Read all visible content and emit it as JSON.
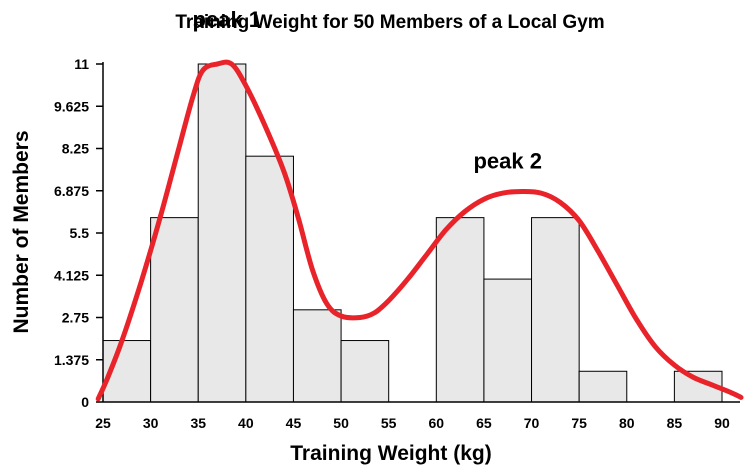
{
  "chart_data": {
    "type": "bar",
    "title": "Training Weight for 50 Members of a Local Gym",
    "xlabel": "Training Weight (kg)",
    "ylabel": "Number of Members",
    "xlim": [
      25,
      90
    ],
    "ylim": [
      0,
      11
    ],
    "x_ticks": [
      "25",
      "30",
      "35",
      "40",
      "45",
      "50",
      "55",
      "60",
      "65",
      "70",
      "75",
      "80",
      "85",
      "90"
    ],
    "y_ticks": [
      "0",
      "1.375",
      "2.75",
      "4.125",
      "5.5",
      "6.875",
      "8.25",
      "9.625",
      "11"
    ],
    "bins": [
      {
        "start": 25,
        "end": 30,
        "value": 2
      },
      {
        "start": 30,
        "end": 35,
        "value": 6
      },
      {
        "start": 35,
        "end": 40,
        "value": 11
      },
      {
        "start": 40,
        "end": 45,
        "value": 8
      },
      {
        "start": 45,
        "end": 50,
        "value": 3
      },
      {
        "start": 50,
        "end": 55,
        "value": 2
      },
      {
        "start": 55,
        "end": 60,
        "value": 0
      },
      {
        "start": 60,
        "end": 65,
        "value": 6
      },
      {
        "start": 65,
        "end": 70,
        "value": 4
      },
      {
        "start": 70,
        "end": 75,
        "value": 6
      },
      {
        "start": 75,
        "end": 80,
        "value": 1
      },
      {
        "start": 80,
        "end": 85,
        "value": 0
      },
      {
        "start": 85,
        "end": 90,
        "value": 1
      }
    ],
    "curve": {
      "color": "#e8232a",
      "points": [
        [
          24.5,
          0.1
        ],
        [
          25.5,
          0.8
        ],
        [
          27,
          2.0
        ],
        [
          29,
          3.9
        ],
        [
          31,
          6.0
        ],
        [
          33,
          8.3
        ],
        [
          34.5,
          10.0
        ],
        [
          35.5,
          10.8
        ],
        [
          37,
          11.0
        ],
        [
          38.5,
          11.0
        ],
        [
          40,
          10.3
        ],
        [
          42,
          9.0
        ],
        [
          44,
          7.5
        ],
        [
          45.5,
          6.0
        ],
        [
          47,
          4.3
        ],
        [
          48.5,
          3.2
        ],
        [
          50,
          2.8
        ],
        [
          52,
          2.75
        ],
        [
          53.5,
          2.9
        ],
        [
          55,
          3.3
        ],
        [
          57,
          4.0
        ],
        [
          59,
          4.8
        ],
        [
          61,
          5.6
        ],
        [
          63,
          6.2
        ],
        [
          65,
          6.6
        ],
        [
          67,
          6.8
        ],
        [
          69,
          6.85
        ],
        [
          71,
          6.8
        ],
        [
          73,
          6.5
        ],
        [
          75,
          5.9
        ],
        [
          77,
          4.9
        ],
        [
          79,
          3.8
        ],
        [
          81,
          2.7
        ],
        [
          83,
          1.8
        ],
        [
          85,
          1.2
        ],
        [
          87,
          0.8
        ],
        [
          89,
          0.55
        ],
        [
          91,
          0.3
        ],
        [
          92,
          0.15
        ]
      ]
    },
    "annotations": [
      {
        "text": "peak 1",
        "x": 38,
        "y": 12.2
      },
      {
        "text": "peak 2",
        "x": 67.5,
        "y": 7.6
      }
    ]
  }
}
